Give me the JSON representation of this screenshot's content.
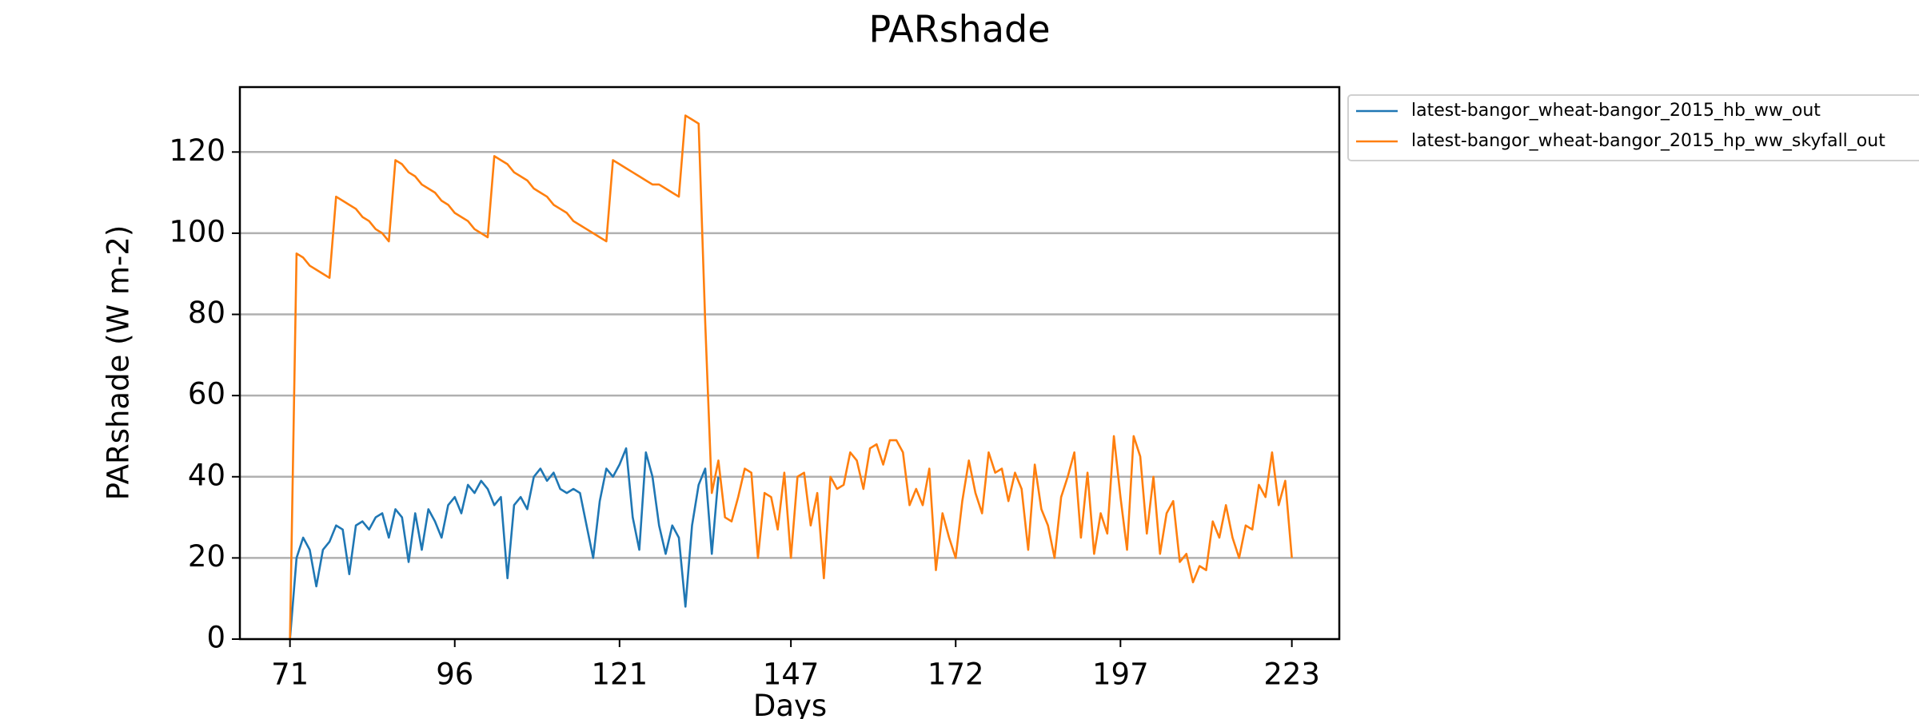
{
  "chart_data": {
    "type": "line",
    "title": "PARshade",
    "x_label": "Days",
    "y_label": "PARshade (W m-2)",
    "x": [
      71,
      72,
      73,
      74,
      75,
      76,
      77,
      78,
      79,
      80,
      81,
      82,
      83,
      84,
      85,
      86,
      87,
      88,
      89,
      90,
      91,
      92,
      93,
      94,
      95,
      96,
      97,
      98,
      99,
      100,
      101,
      102,
      103,
      104,
      105,
      106,
      107,
      108,
      109,
      110,
      111,
      112,
      113,
      114,
      115,
      116,
      117,
      118,
      119,
      120,
      121,
      122,
      123,
      124,
      125,
      126,
      127,
      128,
      129,
      130,
      131,
      132,
      133,
      134,
      135,
      136,
      137,
      138,
      139,
      140,
      141,
      142,
      143,
      144,
      145,
      146,
      147,
      148,
      149,
      150,
      151,
      152,
      153,
      154,
      155,
      156,
      157,
      158,
      159,
      160,
      161,
      162,
      163,
      164,
      165,
      166,
      167,
      168,
      169,
      170,
      171,
      172,
      173,
      174,
      175,
      176,
      177,
      178,
      179,
      180,
      181,
      182,
      183,
      184,
      185,
      186,
      187,
      188,
      189,
      190,
      191,
      192,
      193,
      194,
      195,
      196,
      197,
      198,
      199,
      200,
      201,
      202,
      203,
      204,
      205,
      206,
      207,
      208,
      209,
      210,
      211,
      212,
      213,
      214,
      215,
      216,
      217,
      218,
      219,
      220,
      221,
      222,
      223
    ],
    "series": [
      {
        "name": "latest-bangor_wheat-bangor_2015_hb_ww_out",
        "color": "#1f77b4",
        "values": [
          0,
          20,
          25,
          22,
          13,
          22,
          24,
          28,
          27,
          16,
          28,
          29,
          27,
          30,
          31,
          25,
          32,
          30,
          19,
          31,
          22,
          32,
          29,
          25,
          33,
          35,
          31,
          38,
          36,
          39,
          37,
          33,
          35,
          15,
          33,
          35,
          32,
          40,
          42,
          39,
          41,
          37,
          36,
          37,
          36,
          28,
          20,
          34,
          42,
          40,
          43,
          47,
          30,
          22,
          46,
          40,
          28,
          21,
          28,
          25,
          8,
          28,
          38,
          42,
          21,
          40,
          null,
          null,
          null,
          null,
          null,
          null,
          null,
          null,
          null,
          null,
          null,
          null,
          null,
          null,
          null,
          null,
          null,
          null,
          null,
          null,
          null,
          null,
          null,
          null,
          null,
          null,
          null,
          null,
          null,
          null,
          null,
          null,
          null,
          null,
          null,
          null,
          null,
          null,
          null,
          null,
          null,
          null,
          null,
          null,
          null,
          null,
          null,
          null,
          null,
          null,
          null,
          null,
          null,
          null,
          null,
          null,
          null,
          null,
          null,
          null,
          null,
          null,
          null,
          null,
          null,
          null,
          null,
          null,
          null,
          null,
          null,
          null,
          null,
          null,
          null,
          null,
          null,
          null,
          null,
          null,
          null,
          null,
          null,
          null,
          null,
          null,
          null
        ]
      },
      {
        "name": "latest-bangor_wheat-bangor_2015_hp_ww_skyfall_out",
        "color": "#ff7f0e",
        "values": [
          0,
          95,
          94,
          92,
          91,
          90,
          89,
          109,
          108,
          107,
          106,
          104,
          103,
          101,
          100,
          98,
          118,
          117,
          115,
          114,
          112,
          111,
          110,
          108,
          107,
          105,
          104,
          103,
          101,
          100,
          99,
          119,
          118,
          117,
          115,
          114,
          113,
          111,
          110,
          109,
          107,
          106,
          105,
          103,
          102,
          101,
          100,
          99,
          98,
          118,
          117,
          116,
          115,
          114,
          113,
          112,
          112,
          111,
          110,
          109,
          129,
          128,
          127,
          78,
          36,
          44,
          30,
          29,
          35,
          42,
          41,
          20,
          36,
          35,
          27,
          41,
          20,
          40,
          41,
          28,
          36,
          15,
          40,
          37,
          38,
          46,
          44,
          37,
          47,
          48,
          43,
          49,
          49,
          46,
          33,
          37,
          33,
          42,
          17,
          31,
          25,
          20,
          34,
          44,
          36,
          31,
          46,
          41,
          42,
          34,
          41,
          37,
          22,
          43,
          32,
          28,
          20,
          35,
          40,
          46,
          25,
          41,
          21,
          31,
          26,
          50,
          35,
          22,
          50,
          45,
          26,
          40,
          21,
          31,
          34,
          19,
          21,
          14,
          18,
          17,
          29,
          25,
          33,
          25,
          20,
          28,
          27,
          38,
          35,
          46,
          33,
          39,
          20
        ]
      }
    ],
    "xlim": [
      63.4,
      230.2
    ],
    "ylim": [
      0,
      136
    ],
    "xticks": [
      71,
      96,
      121,
      147,
      172,
      197,
      223
    ],
    "yticks": [
      0,
      20,
      40,
      60,
      80,
      100,
      120
    ],
    "grid": true,
    "legend": "outside-upper-right"
  }
}
